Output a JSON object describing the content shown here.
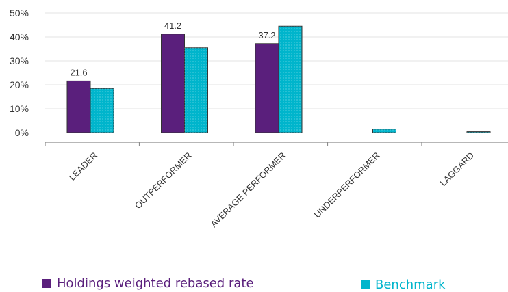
{
  "chart_data": {
    "type": "bar",
    "categories": [
      "LEADER",
      "OUTPERFORMER",
      "AVERAGE PERFORMER",
      "UNDERPERFORMER",
      "LAGGARD"
    ],
    "series": [
      {
        "name": "Holdings weighted rebased rate",
        "color": "#5a1f7c",
        "values": [
          21.6,
          41.2,
          37.2,
          0,
          0
        ]
      },
      {
        "name": "Benchmark",
        "color": "#00b5cc",
        "values": [
          18.5,
          35.5,
          44.5,
          1.5,
          0.4
        ]
      }
    ],
    "data_labels": [
      "21.6",
      "41.2",
      "37.2"
    ],
    "yticks": [
      "0%",
      "10%",
      "20%",
      "30%",
      "40%",
      "50%"
    ],
    "ylim": [
      0,
      50
    ],
    "ystep": 10,
    "grid": true,
    "legend_position": "bottom",
    "title": "",
    "xlabel": "",
    "ylabel": ""
  }
}
